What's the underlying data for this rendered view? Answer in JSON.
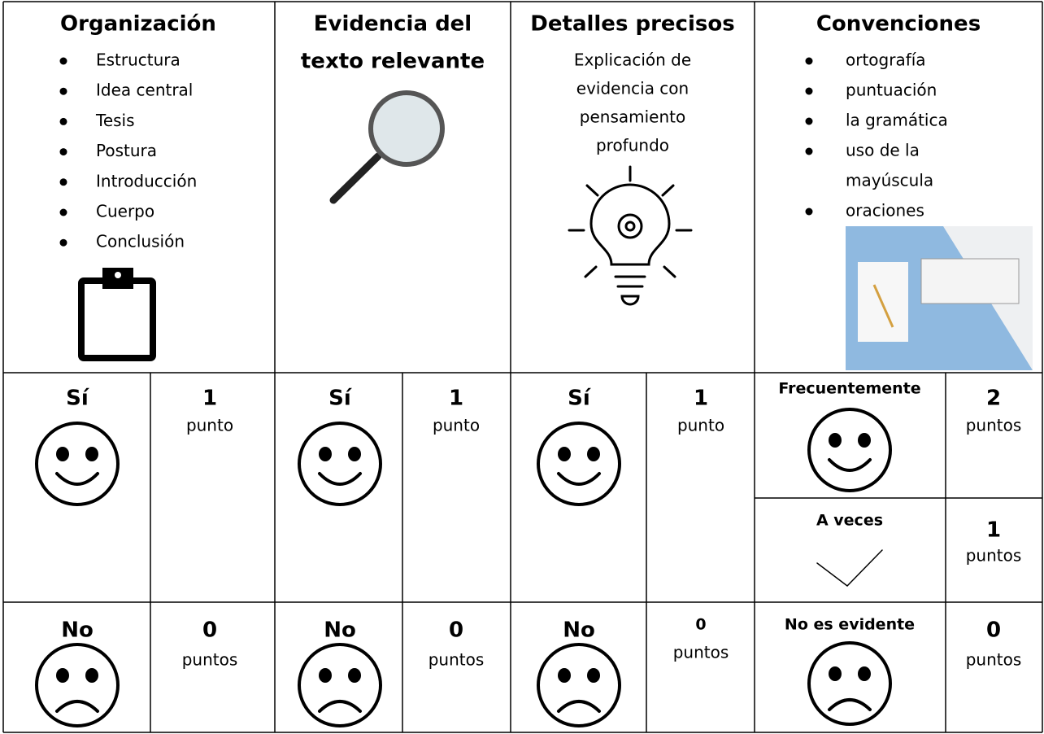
{
  "columns": [
    {
      "title": [
        "Organización"
      ],
      "items": [
        "Estructura",
        "Idea central",
        "Tesis",
        "Postura",
        "Introducción",
        "Cuerpo",
        "Conclusión"
      ]
    },
    {
      "title": [
        "Evidencia del",
        "texto relevante"
      ]
    },
    {
      "title": [
        "Detalles precisos"
      ],
      "description": [
        "Explicación de",
        "evidencia con",
        "pensamiento",
        "profundo"
      ]
    },
    {
      "title": [
        "Convenciones"
      ],
      "items": [
        "ortografía",
        "puntuación",
        "la gramática",
        "uso de la",
        "mayúscula",
        "oraciones"
      ]
    }
  ],
  "scores": [
    [
      {
        "label": "Sí",
        "points": "1",
        "unit": "punto"
      },
      {
        "label": "No",
        "points": "0",
        "unit": "puntos"
      }
    ],
    [
      {
        "label": "Sí",
        "points": "1",
        "unit": "punto"
      },
      {
        "label": "No",
        "points": "0",
        "unit": "puntos"
      }
    ],
    [
      {
        "label": "Sí",
        "points": "1",
        "unit": "punto"
      },
      {
        "label": "No",
        "points": "0",
        "unit": "puntos"
      }
    ],
    [
      {
        "label": "Frecuentemente",
        "points": "2",
        "unit": "puntos"
      },
      {
        "label": "A veces",
        "points": "1",
        "unit": "puntos"
      },
      {
        "label": "No es evidente",
        "points": "0",
        "unit": "puntos"
      }
    ]
  ]
}
